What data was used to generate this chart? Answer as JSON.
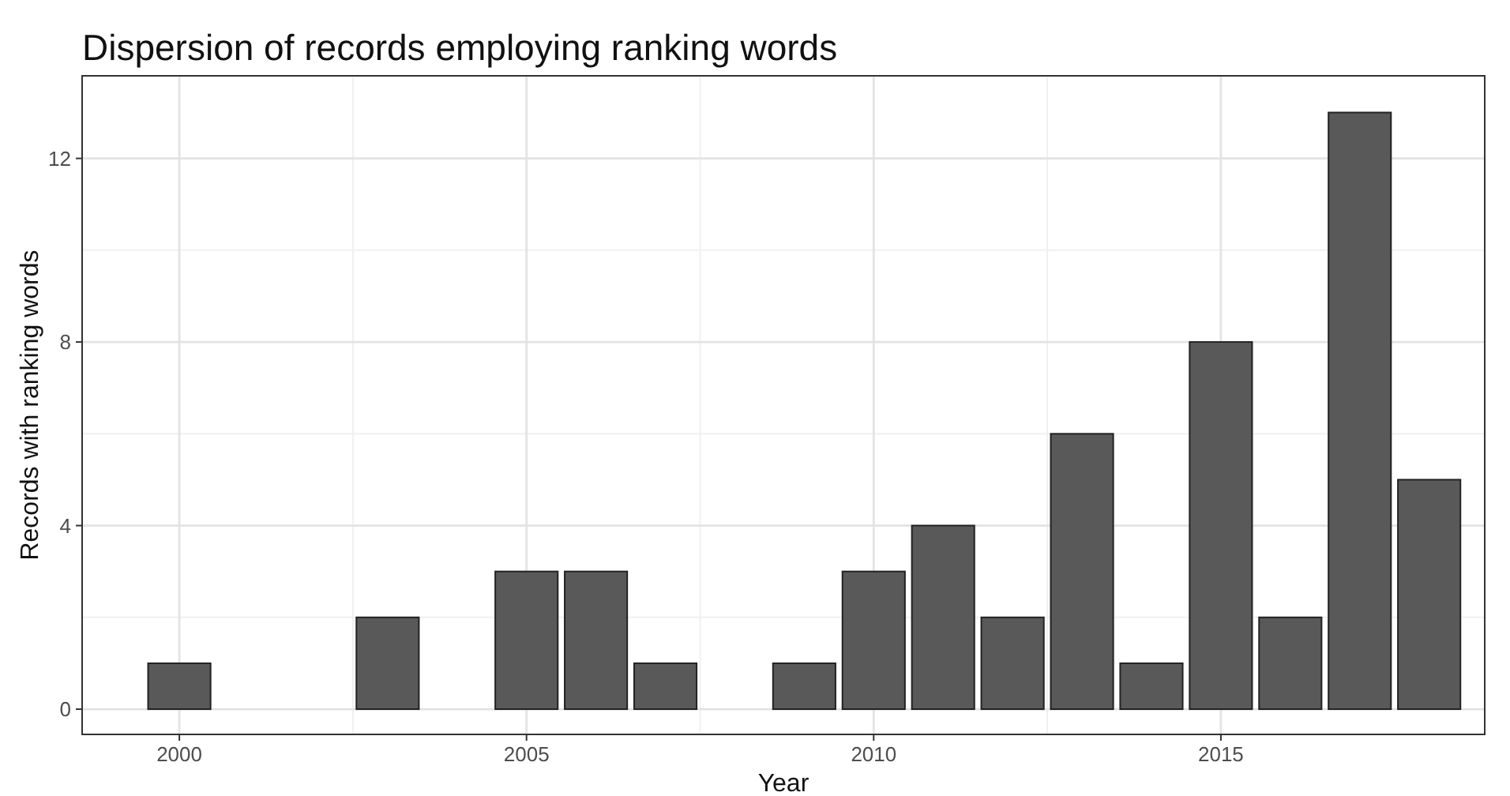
{
  "chart_data": {
    "type": "bar",
    "title": "Dispersion of records employing ranking words",
    "xlabel": "Year",
    "ylabel": "Records with ranking words",
    "x": [
      2000,
      2003,
      2005,
      2006,
      2007,
      2009,
      2010,
      2011,
      2012,
      2013,
      2014,
      2015,
      2016,
      2017,
      2018
    ],
    "values": [
      1,
      2,
      3,
      3,
      1,
      1,
      3,
      4,
      2,
      6,
      1,
      8,
      2,
      13,
      5
    ],
    "color": "#595959",
    "xlim": [
      1998.6,
      2018.8
    ],
    "xticks": [
      2000,
      2005,
      2010,
      2015
    ],
    "ylim": [
      -0.55,
      13.8
    ],
    "yticks": [
      0,
      4,
      8,
      12
    ],
    "grid": true
  }
}
